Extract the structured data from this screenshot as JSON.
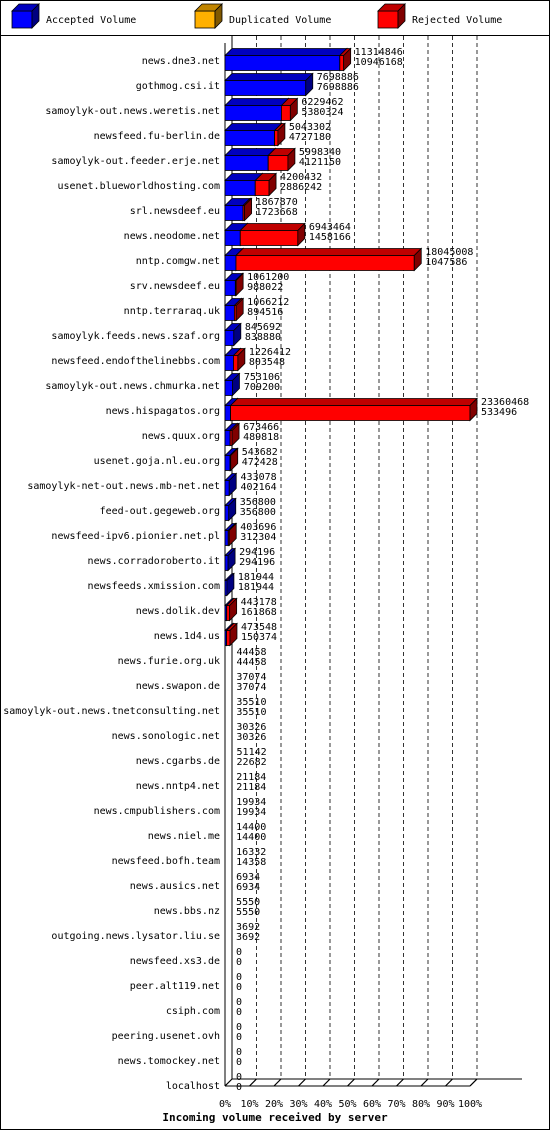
{
  "chart_data": {
    "type": "bar",
    "orientation": "horizontal",
    "stacked": true,
    "xlabel": "Incoming volume received by server",
    "xlim": [
      0,
      100
    ],
    "x_ticks": [
      "0%",
      "10%",
      "20%",
      "30%",
      "40%",
      "50%",
      "60%",
      "70%",
      "80%",
      "90%",
      "100%"
    ],
    "grid": "vertical dashed lines",
    "legend_position": "top",
    "colors": {
      "accepted": "#0000ff",
      "duplicated": "#ffb000",
      "rejected": "#ff0000",
      "grid": "#000000",
      "background": "#ffffff"
    },
    "legend": [
      {
        "key": "accepted",
        "label": "Accepted Volume"
      },
      {
        "key": "duplicated",
        "label": "Duplicated Volume"
      },
      {
        "key": "rejected",
        "label": "Rejected Volume"
      }
    ],
    "series": [
      {
        "name": "Accepted Volume",
        "key": "accepted"
      },
      {
        "name": "Duplicated Volume",
        "key": "duplicated"
      },
      {
        "name": "Rejected Volume",
        "key": "rejected"
      }
    ],
    "categories": [
      "news.dne3.net",
      "gothmog.csi.it",
      "samoylyk-out.news.weretis.net",
      "newsfeed.fu-berlin.de",
      "samoylyk-out.feeder.erje.net",
      "usenet.blueworldhosting.com",
      "srl.newsdeef.eu",
      "news.neodome.net",
      "nntp.comgw.net",
      "srv.newsdeef.eu",
      "nntp.terraraq.uk",
      "samoylyk.feeds.news.szaf.org",
      "newsfeed.endofthelinebbs.com",
      "samoylyk-out.news.chmurka.net",
      "news.hispagatos.org",
      "news.quux.org",
      "usenet.goja.nl.eu.org",
      "samoylyk-net-out.news.mb-net.net",
      "feed-out.gegeweb.org",
      "newsfeed-ipv6.pionier.net.pl",
      "news.corradoroberto.it",
      "newsfeeds.xmission.com",
      "news.dolik.dev",
      "news.1d4.us",
      "news.furie.org.uk",
      "news.swapon.de",
      "samoylyk-out.news.tnetconsulting.net",
      "news.sonologic.net",
      "news.cgarbs.de",
      "news.nntp4.net",
      "news.cmpublishers.com",
      "news.niel.me",
      "newsfeed.bofh.team",
      "news.ausics.net",
      "news.bbs.nz",
      "outgoing.news.lysator.liu.se",
      "newsfeed.xs3.de",
      "peer.alt119.net",
      "csiph.com",
      "peering.usenet.ovh",
      "news.tomockey.net",
      "localhost"
    ],
    "values": [
      {
        "total": "11314846",
        "accepted": "10946168"
      },
      {
        "total": "7698886",
        "accepted": "7698886"
      },
      {
        "total": "6229462",
        "accepted": "5380324"
      },
      {
        "total": "5043302",
        "accepted": "4727180"
      },
      {
        "total": "5998340",
        "accepted": "4121150"
      },
      {
        "total": "4200432",
        "accepted": "2886242"
      },
      {
        "total": "1867870",
        "accepted": "1723668"
      },
      {
        "total": "6943464",
        "accepted": "1458166"
      },
      {
        "total": "18045008",
        "accepted": "1047586"
      },
      {
        "total": "1061200",
        "accepted": "988022"
      },
      {
        "total": "1066212",
        "accepted": "894516"
      },
      {
        "total": "845692",
        "accepted": "838880"
      },
      {
        "total": "1226412",
        "accepted": "803548"
      },
      {
        "total": "753106",
        "accepted": "709200"
      },
      {
        "total": "23360468",
        "accepted": "533496"
      },
      {
        "total": "673466",
        "accepted": "489818"
      },
      {
        "total": "543682",
        "accepted": "472428"
      },
      {
        "total": "433078",
        "accepted": "402164"
      },
      {
        "total": "356800",
        "accepted": "356800"
      },
      {
        "total": "403696",
        "accepted": "312304"
      },
      {
        "total": "294196",
        "accepted": "294196"
      },
      {
        "total": "181944",
        "accepted": "181944"
      },
      {
        "total": "443178",
        "accepted": "161868"
      },
      {
        "total": "473548",
        "accepted": "150374"
      },
      {
        "total": "44458",
        "accepted": "44458"
      },
      {
        "total": "37074",
        "accepted": "37074"
      },
      {
        "total": "35510",
        "accepted": "35510"
      },
      {
        "total": "30326",
        "accepted": "30326"
      },
      {
        "total": "51142",
        "accepted": "22682"
      },
      {
        "total": "21184",
        "accepted": "21184"
      },
      {
        "total": "19934",
        "accepted": "19934"
      },
      {
        "total": "14400",
        "accepted": "14400"
      },
      {
        "total": "16332",
        "accepted": "14358"
      },
      {
        "total": "6934",
        "accepted": "6934"
      },
      {
        "total": "5550",
        "accepted": "5550"
      },
      {
        "total": "3692",
        "accepted": "3692"
      },
      {
        "total": "0",
        "accepted": "0"
      },
      {
        "total": "0",
        "accepted": "0"
      },
      {
        "total": "0",
        "accepted": "0"
      },
      {
        "total": "0",
        "accepted": "0"
      },
      {
        "total": "0",
        "accepted": "0"
      },
      {
        "total": "0",
        "accepted": "0"
      }
    ]
  }
}
